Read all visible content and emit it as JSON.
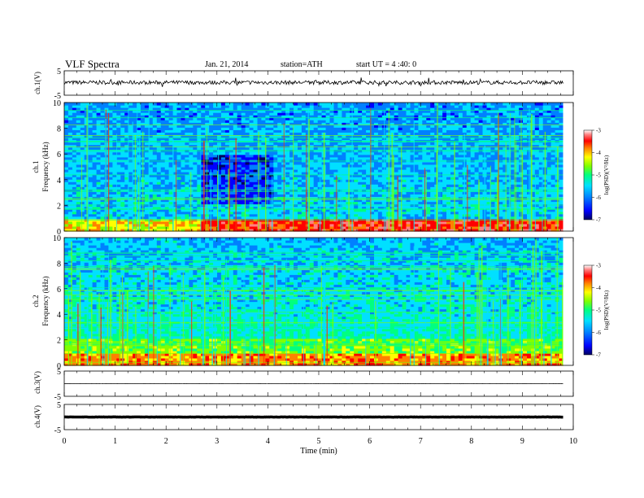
{
  "header": {
    "title": "VLF Spectra",
    "date": "Jan. 21, 2014",
    "station": "station=ATH",
    "start": "start  UT  =  4 :40: 0"
  },
  "chart_data": {
    "type": "heatmap",
    "xlabel": "Time (min)",
    "xlim": [
      0,
      10
    ],
    "x_ticks": [
      "0",
      "1",
      "2",
      "3",
      "4",
      "5",
      "6",
      "7",
      "8",
      "9",
      "10"
    ],
    "waveforms": [
      {
        "label": "ch.1(V)",
        "ylim": [
          -5,
          5
        ],
        "y_ticks": [
          "5",
          "-5"
        ],
        "level": 0.2,
        "noise": "high"
      },
      {
        "label": "ch.3(V)",
        "ylim": [
          -5,
          5
        ],
        "y_ticks": [
          "5",
          "-5"
        ],
        "level": 0.0,
        "noise": "low"
      },
      {
        "label": "ch.4(V)",
        "ylim": [
          -5,
          5
        ],
        "y_ticks": [
          "5",
          "-5"
        ],
        "level": 0.0,
        "noise": "thick"
      }
    ],
    "spectrograms": [
      {
        "channel": "ch.1",
        "ylabel": "Frequency (kHz)",
        "ylim": [
          0,
          10
        ],
        "y_ticks": [
          "0",
          "2",
          "4",
          "6",
          "8",
          "10"
        ],
        "data_tmax": 9.8
      },
      {
        "channel": "ch.2",
        "ylabel": "Frequency (kHz)",
        "ylim": [
          0,
          10
        ],
        "y_ticks": [
          "0",
          "2",
          "4",
          "6",
          "8",
          "10"
        ],
        "data_tmax": 9.8
      }
    ],
    "colorbar": {
      "label": "log(PSD)(V²/Hz)",
      "range": [
        -7,
        -3
      ],
      "ticks": [
        "-3",
        "-4",
        "-5",
        "-6",
        "-7"
      ],
      "colors": [
        "#000060",
        "#0000ff",
        "#0080ff",
        "#00e0ff",
        "#00ff80",
        "#80ff00",
        "#ffff00",
        "#ff8000",
        "#ff0000",
        "#ff8080",
        "#ffffff"
      ]
    }
  }
}
